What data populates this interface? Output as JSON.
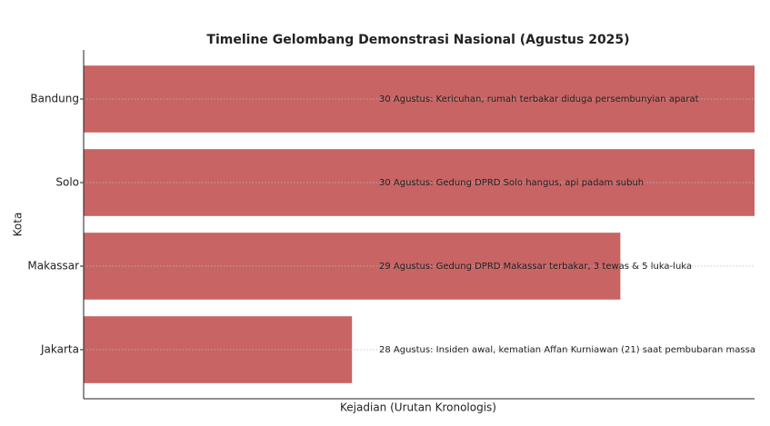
{
  "chart_data": {
    "type": "barh",
    "title": "Timeline Gelombang Demonstrasi Nasional (Agustus 2025)",
    "x_label": "Kejadian (Urutan Kronologis)",
    "y_label": "Kota",
    "categories": [
      "Bandung",
      "Solo",
      "Makassar",
      "Jakarta"
    ],
    "values": [
      2.5,
      2.5,
      2,
      1
    ],
    "annotations": [
      "30 Agustus: Kericuhan, rumah terbakar diduga persembunyian aparat",
      "30 Agustus: Gedung DPRD Solo hangus, api padam subuh",
      "29 Agustus: Gedung DPRD Makassar terbakar, 3 tewas & 5 luka-luka",
      "28 Agustus: Insiden awal, kematian Affan Kurniawan (21) saat pembubaran massa"
    ],
    "color": "#c86464",
    "xlim": [
      0,
      2.5
    ],
    "grid": true
  }
}
